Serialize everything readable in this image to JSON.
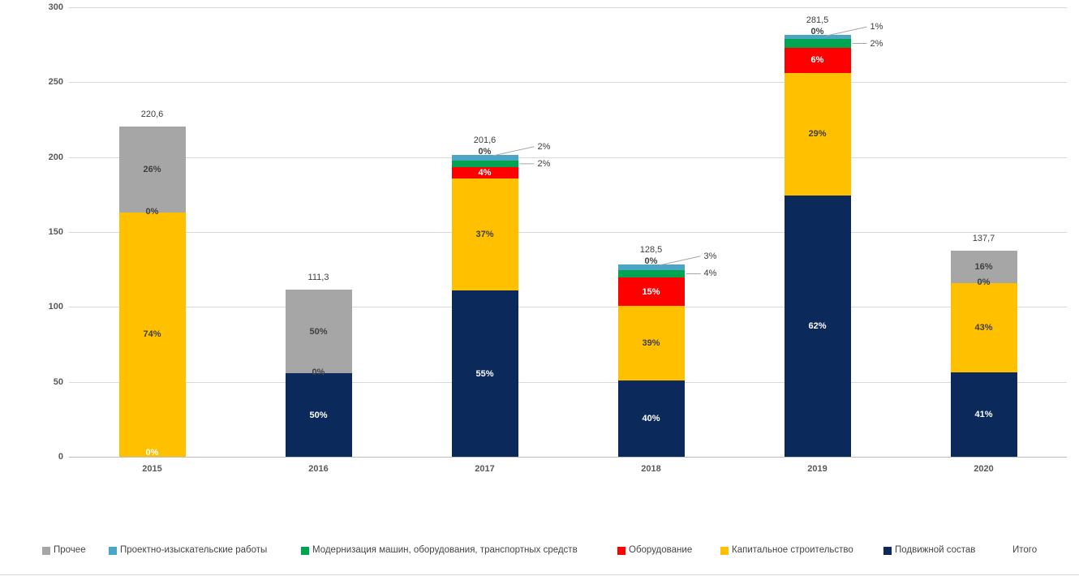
{
  "chart_data": {
    "type": "bar",
    "stacked": true,
    "grid": true,
    "legend_position": "bottom",
    "categories": [
      "2015",
      "2016",
      "2017",
      "2018",
      "2019",
      "2020"
    ],
    "totals": [
      220.6,
      111.3,
      201.6,
      128.5,
      281.5,
      137.7
    ],
    "total_labels": [
      "220,6",
      "111,3",
      "201,6",
      "128,5",
      "281,5",
      "137,7"
    ],
    "ylim": [
      0,
      300
    ],
    "yticks": [
      0,
      50,
      100,
      150,
      200,
      250,
      300
    ],
    "series": [
      {
        "name": "Подвижной состав",
        "color": "#0B2A5B",
        "pct": [
          0,
          50,
          55,
          40,
          62,
          41
        ]
      },
      {
        "name": "Капитальное строительство",
        "color": "#FFC000",
        "pct": [
          74,
          0,
          37,
          39,
          29,
          43
        ]
      },
      {
        "name": "Оборудование",
        "color": "#FF0000",
        "pct": [
          0,
          0,
          4,
          15,
          6,
          0
        ]
      },
      {
        "name": "Модернизация машин, оборудования, транспортных средств",
        "color": "#00A551",
        "pct": [
          0,
          0,
          2,
          4,
          2,
          0
        ]
      },
      {
        "name": "Проектно-изыскательские работы",
        "color": "#4BA6C6",
        "pct": [
          0,
          0,
          2,
          3,
          1,
          0
        ]
      },
      {
        "name": "Прочее",
        "color": "#A6A6A6",
        "pct": [
          26,
          50,
          0,
          0,
          0,
          16
        ]
      }
    ],
    "bar_labels": [
      {
        "inside": [
          {
            "s": 1,
            "t": "74%"
          },
          {
            "s": 5,
            "t": "26%"
          }
        ],
        "bottom": "0%",
        "boundary": {
          "after": 1,
          "t": "0%"
        }
      },
      {
        "inside": [
          {
            "s": 0,
            "t": "50%",
            "light": true
          },
          {
            "s": 5,
            "t": "50%"
          }
        ],
        "boundary": {
          "after": 0,
          "t": "0%"
        }
      },
      {
        "inside": [
          {
            "s": 0,
            "t": "55%",
            "light": true
          },
          {
            "s": 1,
            "t": "37%"
          },
          {
            "s": 2,
            "t": "4%",
            "light": true
          }
        ],
        "top": "0%",
        "callouts": [
          {
            "s": 4,
            "t": "2%"
          },
          {
            "s": 3,
            "t": "2%"
          }
        ]
      },
      {
        "inside": [
          {
            "s": 0,
            "t": "40%",
            "light": true
          },
          {
            "s": 1,
            "t": "39%"
          },
          {
            "s": 2,
            "t": "15%",
            "light": true
          }
        ],
        "top": "0%",
        "callouts": [
          {
            "s": 4,
            "t": "3%"
          },
          {
            "s": 3,
            "t": "4%"
          }
        ]
      },
      {
        "inside": [
          {
            "s": 0,
            "t": "62%",
            "light": true
          },
          {
            "s": 1,
            "t": "29%"
          },
          {
            "s": 2,
            "t": "6%",
            "light": true
          }
        ],
        "top": "0%",
        "callouts": [
          {
            "s": 4,
            "t": "1%"
          },
          {
            "s": 3,
            "t": "2%"
          }
        ]
      },
      {
        "inside": [
          {
            "s": 0,
            "t": "41%",
            "light": true
          },
          {
            "s": 1,
            "t": "43%"
          },
          {
            "s": 5,
            "t": "16%"
          }
        ],
        "boundary": {
          "after": 1,
          "t": "0%"
        }
      }
    ]
  },
  "legend": {
    "items": [
      {
        "label": "Прочее",
        "color": "#A6A6A6"
      },
      {
        "label": "Проектно-изыскательские работы",
        "color": "#4BA6C6"
      },
      {
        "label": "Модернизация машин, оборудования, транспортных средств",
        "color": "#00A551"
      },
      {
        "label": "Оборудование",
        "color": "#FF0000"
      },
      {
        "label": "Капитальное строительство",
        "color": "#FFC000"
      },
      {
        "label": "Подвижной состав",
        "color": "#0B2A5B"
      }
    ],
    "total_label": "Итого"
  }
}
